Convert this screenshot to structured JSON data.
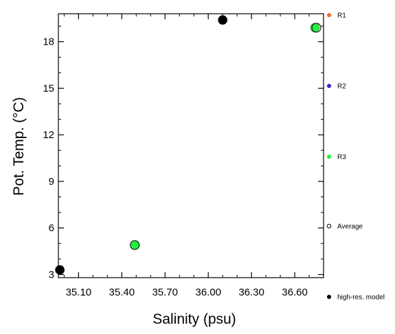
{
  "chart_data": {
    "type": "scatter",
    "xlabel": "Salinity (psu)",
    "ylabel": "Pot. Temp. (°C)",
    "xlim": [
      34.96,
      36.8
    ],
    "ylim": [
      2.8,
      19.8
    ],
    "xticks": [
      "35.10",
      "35.40",
      "35.70",
      "36.00",
      "36.30",
      "36.60"
    ],
    "yticks": [
      "3",
      "6",
      "9",
      "12",
      "15",
      "18"
    ],
    "grid": false,
    "legend_position": "right",
    "series": [
      {
        "name": "R1",
        "color": "#f26b2b",
        "marker": "filled-circle",
        "points": []
      },
      {
        "name": "R2",
        "color": "#3d24d6",
        "marker": "filled-circle",
        "points": []
      },
      {
        "name": "R3",
        "color": "#22f23d",
        "marker": "filled-circle",
        "points": [
          {
            "x": 35.49,
            "y": 4.9
          },
          {
            "x": 36.74,
            "y": 18.9
          }
        ]
      },
      {
        "name": "Average",
        "color": "#000000",
        "marker": "open-circle",
        "points": [
          {
            "x": 35.49,
            "y": 4.9
          },
          {
            "x": 36.75,
            "y": 18.9
          }
        ]
      },
      {
        "name": "high-res. model",
        "color": "#000000",
        "marker": "filled-circle",
        "points": [
          {
            "x": 34.97,
            "y": 3.3
          },
          {
            "x": 36.1,
            "y": 19.4
          }
        ]
      }
    ]
  }
}
